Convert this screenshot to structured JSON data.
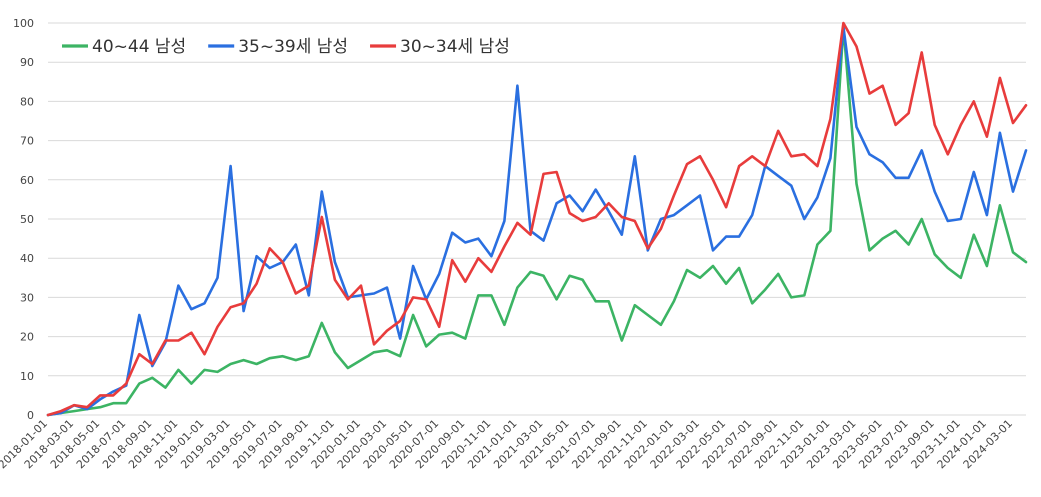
{
  "chart_data": {
    "type": "line",
    "title": "",
    "xlabel": "",
    "ylabel": "",
    "ylim": [
      0,
      100
    ],
    "yticks": [
      0,
      10,
      20,
      30,
      40,
      50,
      60,
      70,
      80,
      90,
      100
    ],
    "grid": true,
    "legend": "top-left",
    "x": [
      "2018-01-01",
      "2018-02-01",
      "2018-03-01",
      "2018-04-01",
      "2018-05-01",
      "2018-06-01",
      "2018-07-01",
      "2018-08-01",
      "2018-09-01",
      "2018-10-01",
      "2018-11-01",
      "2018-12-01",
      "2019-01-01",
      "2019-02-01",
      "2019-03-01",
      "2019-04-01",
      "2019-05-01",
      "2019-06-01",
      "2019-07-01",
      "2019-08-01",
      "2019-09-01",
      "2019-10-01",
      "2019-11-01",
      "2019-12-01",
      "2020-01-01",
      "2020-02-01",
      "2020-03-01",
      "2020-04-01",
      "2020-05-01",
      "2020-06-01",
      "2020-07-01",
      "2020-08-01",
      "2020-09-01",
      "2020-10-01",
      "2020-11-01",
      "2020-12-01",
      "2021-01-01",
      "2021-02-01",
      "2021-03-01",
      "2021-04-01",
      "2021-05-01",
      "2021-06-01",
      "2021-07-01",
      "2021-08-01",
      "2021-09-01",
      "2021-10-01",
      "2021-11-01",
      "2021-12-01",
      "2022-01-01",
      "2022-02-01",
      "2022-03-01",
      "2022-04-01",
      "2022-05-01",
      "2022-06-01",
      "2022-07-01",
      "2022-08-01",
      "2022-09-01",
      "2022-10-01",
      "2022-11-01",
      "2022-12-01",
      "2023-01-01",
      "2023-02-01",
      "2023-03-01",
      "2023-04-01",
      "2023-05-01",
      "2023-06-01",
      "2023-07-01",
      "2023-08-01",
      "2023-09-01",
      "2023-10-01",
      "2023-11-01",
      "2023-12-01",
      "2024-01-01",
      "2024-02-01",
      "2024-03-01",
      "2024-04-01"
    ],
    "tick_labels": [
      "2018-01-01",
      "2018-03-01",
      "2018-05-01",
      "2018-07-01",
      "2018-09-01",
      "2018-11-01",
      "2019-01-01",
      "2019-03-01",
      "2019-05-01",
      "2019-07-01",
      "2019-09-01",
      "2019-11-01",
      "2020-01-01",
      "2020-03-01",
      "2020-05-01",
      "2020-07-01",
      "2020-09-01",
      "2020-11-01",
      "2021-01-01",
      "2021-03-01",
      "2021-05-01",
      "2021-07-01",
      "2021-09-01",
      "2021-11-01",
      "2022-01-01",
      "2022-03-01",
      "2022-05-01",
      "2022-07-01",
      "2022-09-01",
      "2022-11-01",
      "2023-01-01",
      "2023-03-01",
      "2023-05-01",
      "2023-07-01",
      "2023-09-01",
      "2023-11-01",
      "2024-01-01",
      "2024-03-01"
    ],
    "series": [
      {
        "name": "40~44 남성",
        "color": "#3cb464",
        "values": [
          0,
          0.5,
          1,
          1.5,
          2,
          3,
          3,
          8,
          9.5,
          7,
          11.5,
          8,
          11.5,
          11,
          13,
          14,
          13,
          14.5,
          15,
          14,
          15,
          23.5,
          16,
          12,
          14,
          16,
          16.5,
          15,
          25.5,
          17.5,
          20.5,
          21,
          19.5,
          30.5,
          30.5,
          23,
          32.5,
          36.5,
          35.5,
          29.5,
          35.5,
          34.5,
          29,
          29,
          19,
          28,
          25.5,
          23,
          29,
          37,
          35,
          38,
          33.5,
          37.5,
          28.5,
          32,
          36,
          30,
          30.5,
          43.5,
          47,
          99,
          59,
          42,
          45,
          47,
          43.5,
          50,
          41,
          37.5,
          35,
          46,
          38,
          53.5,
          41.5,
          39
        ]
      },
      {
        "name": "35~39세 남성",
        "color": "#2a6fe0",
        "values": [
          0,
          0.5,
          2.5,
          1.5,
          4,
          6,
          7.5,
          25.5,
          12.5,
          18.5,
          33,
          27,
          28.5,
          35,
          63.5,
          26.5,
          40.5,
          37.5,
          39,
          43.5,
          30.5,
          57,
          39,
          30,
          30.5,
          31,
          32.5,
          19.5,
          38,
          29.5,
          36,
          46.5,
          44,
          45,
          40.5,
          49.5,
          84,
          47,
          44.5,
          54,
          56,
          52,
          57.5,
          52,
          46,
          66,
          42,
          50,
          51,
          53.5,
          56,
          42,
          45.5,
          45.5,
          51,
          63.5,
          61,
          58.5,
          50,
          55.5,
          65.5,
          99,
          73.5,
          66.5,
          64.5,
          60.5,
          60.5,
          67.5,
          57,
          49.5,
          50,
          62,
          51,
          72,
          57,
          67.5
        ]
      },
      {
        "name": "30~34세 남성",
        "color": "#e83c3c",
        "values": [
          0,
          1,
          2.5,
          2,
          5,
          5,
          8,
          15.5,
          13,
          19,
          19,
          21,
          15.5,
          22.5,
          27.5,
          28.5,
          33.5,
          42.5,
          39,
          31,
          33,
          50.5,
          34.5,
          29.5,
          33,
          18,
          21.5,
          24,
          30,
          29.5,
          22.5,
          39.5,
          34,
          40,
          36.5,
          43,
          49,
          46,
          61.5,
          62,
          51.5,
          49.5,
          50.5,
          54,
          50.5,
          49.5,
          42.5,
          47.5,
          56,
          64,
          66,
          60,
          53,
          63.5,
          66,
          63.5,
          72.5,
          66,
          66.5,
          63.5,
          75.5,
          100,
          94,
          82,
          84,
          74,
          77,
          92.5,
          74,
          66.5,
          74,
          80,
          71,
          86,
          74.5,
          79
        ]
      }
    ]
  }
}
